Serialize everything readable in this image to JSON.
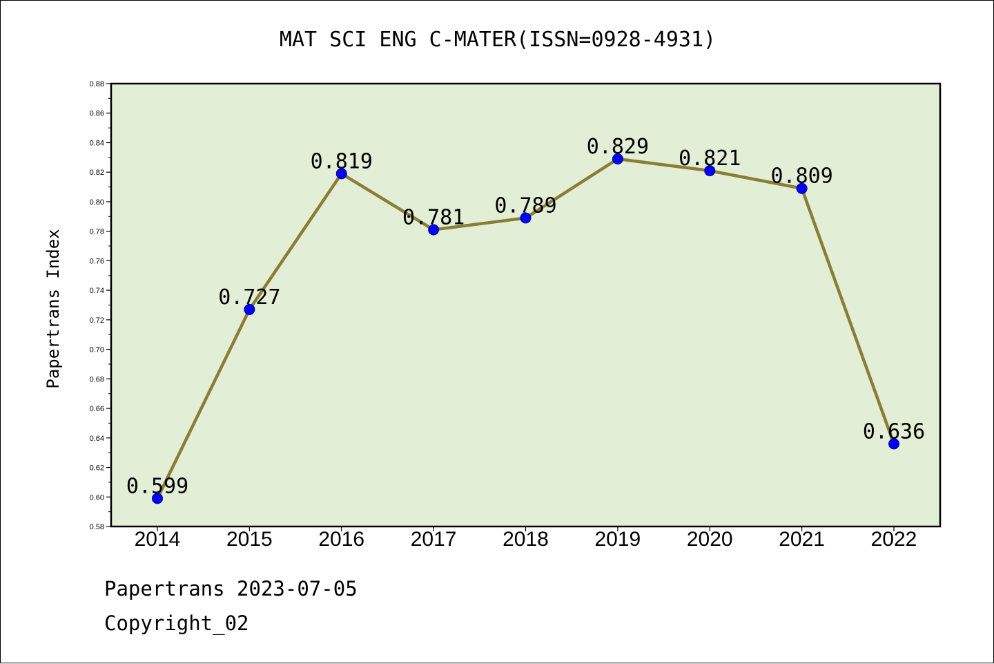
{
  "chart_data": {
    "type": "line",
    "title": "MAT SCI ENG C-MATER(ISSN=0928-4931)",
    "ylabel": "Papertrans Index",
    "xlabel": "",
    "categories": [
      "2014",
      "2015",
      "2016",
      "2017",
      "2018",
      "2019",
      "2020",
      "2021",
      "2022"
    ],
    "series": [
      {
        "values": [
          0.599,
          0.727,
          0.819,
          0.781,
          0.789,
          0.829,
          0.821,
          0.809,
          0.636
        ]
      }
    ],
    "data_labels": [
      "0.599",
      "0.727",
      "0.819",
      "0.781",
      "0.789",
      "0.829",
      "0.821",
      "0.809",
      "0.636"
    ],
    "ylim": [
      0.58,
      0.88
    ],
    "yticks": [
      "0.58",
      "0.60",
      "0.62",
      "0.64",
      "0.66",
      "0.68",
      "0.70",
      "0.72",
      "0.74",
      "0.76",
      "0.78",
      "0.80",
      "0.82",
      "0.84",
      "0.86",
      "0.88"
    ],
    "grid": false,
    "legend": "none",
    "colors": {
      "plot_background": "#e2efd6",
      "line": "#8b7d35",
      "marker": "#0000ff",
      "marker_edge": "#00008b"
    }
  },
  "footer": {
    "line1": "Papertrans 2023-07-05",
    "line2": "Copyright_02"
  }
}
